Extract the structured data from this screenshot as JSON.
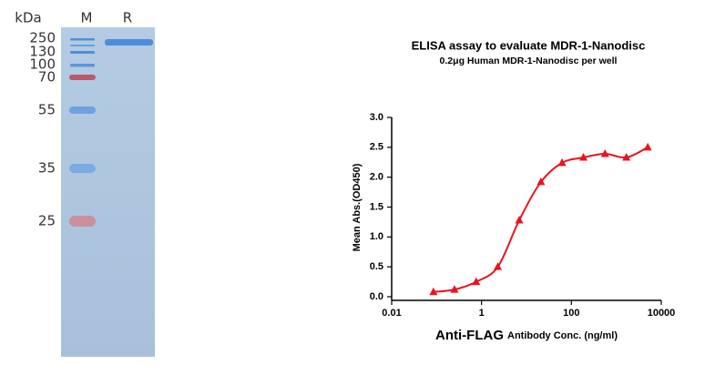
{
  "gel": {
    "header": "kDa",
    "lanes": [
      "M",
      "R"
    ],
    "markers": [
      250,
      130,
      100,
      70,
      55,
      35,
      25
    ]
  },
  "chart_data": {
    "type": "scatter",
    "title": "ELISA assay to evaluate MDR-1-Nanodisc",
    "subtitle": "0.2μg Human MDR-1-Nanodisc per well",
    "ylabel": "Mean Abs.(OD450)",
    "xlabel": [
      "Anti-FLAG",
      "Antibody Conc. (ng/ml)"
    ],
    "x": [
      0.085,
      0.25,
      0.76,
      2.3,
      6.9,
      21,
      62,
      185,
      560,
      1670,
      5000
    ],
    "values": [
      0.08,
      0.12,
      0.25,
      0.5,
      1.28,
      1.92,
      2.24,
      2.33,
      2.39,
      2.33,
      2.5
    ],
    "color": "#e8141c",
    "fit_line": true,
    "xlog": true,
    "xlim": [
      0.01,
      10000
    ],
    "xticks": [
      0.01,
      1,
      100,
      10000
    ],
    "ylim": [
      0,
      3.0
    ],
    "yticks": [
      {
        "value": 0,
        "label": "0.0"
      },
      {
        "value": 0.5,
        "label": "0.5"
      },
      {
        "value": 1,
        "label": "1.0"
      },
      {
        "value": 1.5,
        "label": "1.5"
      },
      {
        "value": 2,
        "label": "2.0"
      },
      {
        "value": 2.5,
        "label": "2.5"
      },
      {
        "value": 3,
        "label": "3.0"
      }
    ]
  }
}
